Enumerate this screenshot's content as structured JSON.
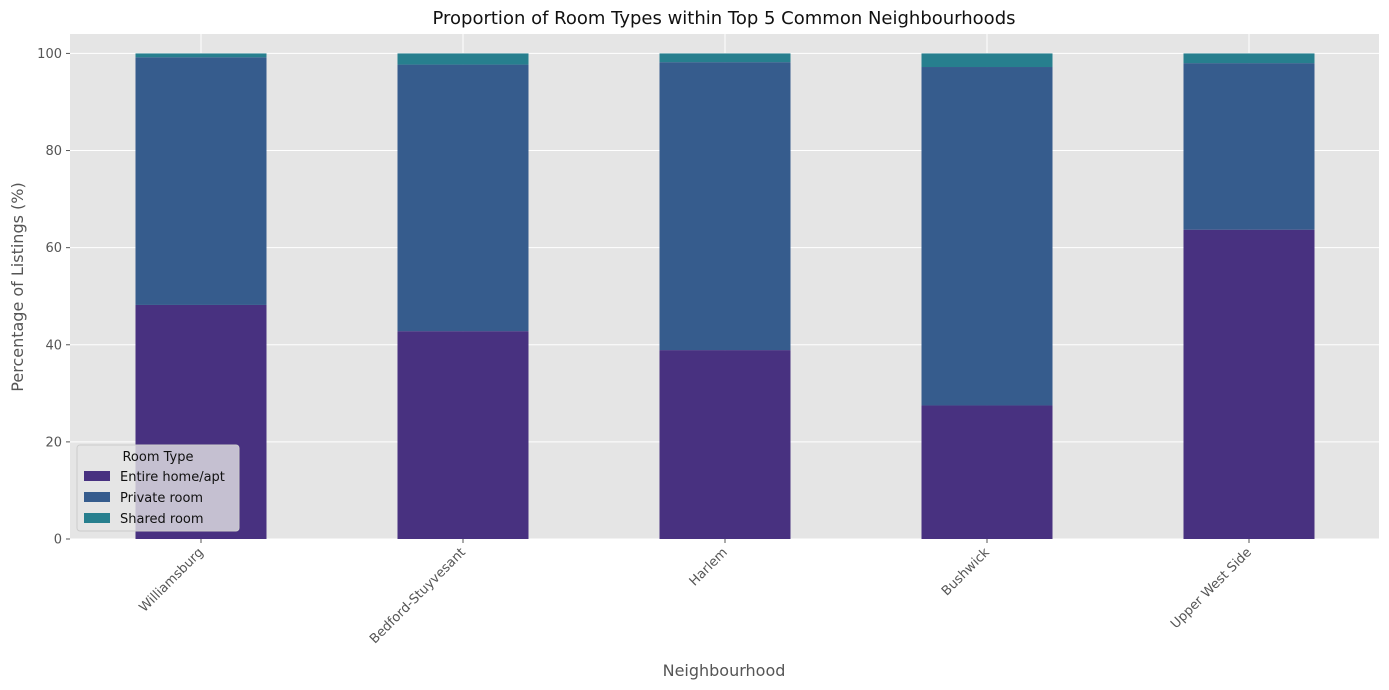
{
  "chart_data": {
    "type": "bar",
    "stacked": true,
    "title": "Proportion of Room Types within Top 5 Common Neighbourhoods",
    "xlabel": "Neighbourhood",
    "ylabel": "Percentage of Listings (%)",
    "ylim": [
      0,
      104
    ],
    "yticks": [
      0,
      20,
      40,
      60,
      80,
      100
    ],
    "grid": true,
    "legend_title": "Room Type",
    "legend_position": "lower-left",
    "categories": [
      "Williamsburg",
      "Bedford-Stuyvesant",
      "Harlem",
      "Bushwick",
      "Upper West Side"
    ],
    "series": [
      {
        "name": "Entire home/apt",
        "color": "#483180",
        "values": [
          48.2,
          42.8,
          38.9,
          27.5,
          63.7
        ]
      },
      {
        "name": "Private room",
        "color": "#365c8d",
        "values": [
          51.0,
          54.9,
          59.3,
          69.7,
          34.3
        ]
      },
      {
        "name": "Shared room",
        "color": "#277f8e",
        "values": [
          0.8,
          2.3,
          1.8,
          2.8,
          2.0
        ]
      }
    ]
  }
}
